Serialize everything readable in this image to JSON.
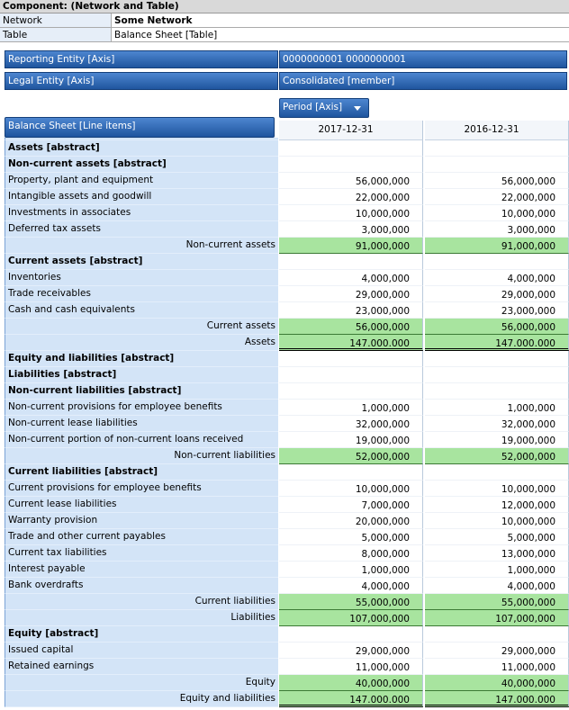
{
  "header": {
    "title": "Component: (Network and Table)",
    "rows": [
      [
        "Network",
        "Some Network"
      ],
      [
        "Table",
        "Balance Sheet [Table]"
      ]
    ]
  },
  "axes": [
    [
      "Reporting Entity [Axis]",
      "0000000001 0000000001"
    ],
    [
      "Legal Entity [Axis]",
      "Consolidated [member]"
    ]
  ],
  "period_axis": "Period [Axis]",
  "table": {
    "title": "Balance Sheet [Line items]",
    "columns": [
      "2017-12-31",
      "2016-12-31"
    ],
    "rows": [
      {
        "label": "Assets [abstract]"
      },
      {
        "label": "Non-current assets [abstract]"
      },
      {
        "label": "Property, plant and equipment",
        "values": [
          "56,000,000",
          "56,000,000"
        ]
      },
      {
        "label": "Intangible assets and goodwill",
        "values": [
          "22,000,000",
          "22,000,000"
        ]
      },
      {
        "label": "Investments in associates",
        "values": [
          "10,000,000",
          "10,000,000"
        ]
      },
      {
        "label": "Deferred tax assets",
        "values": [
          "3,000,000",
          "3,000,000"
        ]
      },
      {
        "label": "Non-current assets",
        "total": [
          "91,000,000",
          "91,000,000"
        ]
      },
      {
        "label": "Current assets [abstract]"
      },
      {
        "label": "Inventories",
        "values": [
          "4,000,000",
          "4,000,000"
        ]
      },
      {
        "label": "Trade receivables",
        "values": [
          "29,000,000",
          "29,000,000"
        ]
      },
      {
        "label": "Cash and cash equivalents",
        "values": [
          "23,000,000",
          "23,000,000"
        ]
      },
      {
        "label": "Current assets",
        "total": [
          "56,000,000",
          "56,000,000"
        ]
      },
      {
        "label": "Assets",
        "grand_total": [
          "147.000.000",
          "147.000.000"
        ]
      },
      {
        "label": "Equity and liabilities [abstract]"
      },
      {
        "label": "Liabilities [abstract]"
      },
      {
        "label": "Non-current liabilities [abstract]"
      },
      {
        "label": "Non-current provisions for employee benefits",
        "values": [
          "1,000,000",
          "1,000,000"
        ]
      },
      {
        "label": "Non-current lease liabilities",
        "values": [
          "32,000,000",
          "32,000,000"
        ]
      },
      {
        "label": "Non-current portion of non-current loans received",
        "values": [
          "19,000,000",
          "19,000,000"
        ]
      },
      {
        "label": "Non-current liabilities",
        "total": [
          "52,000,000",
          "52,000,000"
        ]
      },
      {
        "label": "Current liabilities [abstract]"
      },
      {
        "label": "Current provisions for employee benefits",
        "values": [
          "10,000,000",
          "10,000,000"
        ]
      },
      {
        "label": "Current lease liabilities",
        "values": [
          "7,000,000",
          "12,000,000"
        ]
      },
      {
        "label": "Warranty provision",
        "values": [
          "20,000,000",
          "10,000,000"
        ]
      },
      {
        "label": "Trade and other current payables",
        "values": [
          "5,000,000",
          "5,000,000"
        ]
      },
      {
        "label": "Current tax liabilities",
        "values": [
          "8,000,000",
          "13,000,000"
        ]
      },
      {
        "label": "Interest payable",
        "values": [
          "1,000,000",
          "1,000,000"
        ]
      },
      {
        "label": "Bank overdrafts",
        "values": [
          "4,000,000",
          "4,000,000"
        ]
      },
      {
        "label": "Current liabilities",
        "total": [
          "55,000,000",
          "55,000,000"
        ]
      },
      {
        "label": "Liabilities",
        "total": [
          "107,000,000",
          "107,000,000"
        ]
      },
      {
        "label": "Equity [abstract]"
      },
      {
        "label": "Issued capital",
        "values": [
          "29,000,000",
          "29,000,000"
        ]
      },
      {
        "label": "Retained earnings",
        "values": [
          "11,000,000",
          "11,000,000"
        ]
      },
      {
        "label": "Equity",
        "total": [
          "40,000,000",
          "40,000,000"
        ]
      },
      {
        "label": "Equity and liabilities",
        "grand_total": [
          "147.000.000",
          "147.000.000"
        ]
      }
    ]
  }
}
